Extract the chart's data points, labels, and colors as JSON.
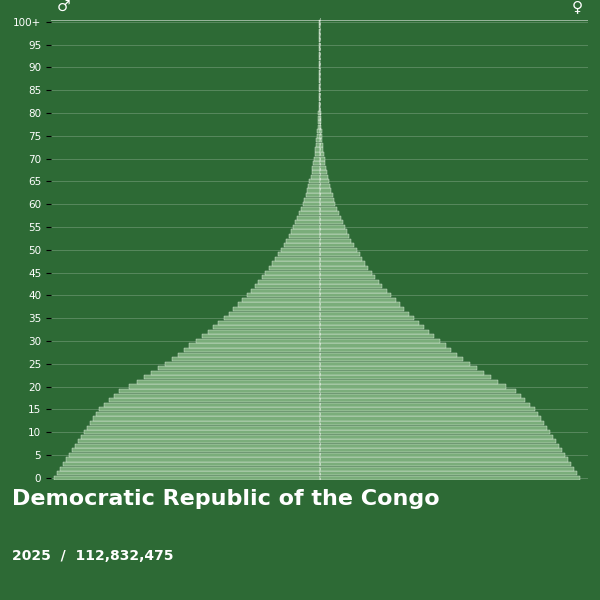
{
  "title": "Democratic Republic of the Congo",
  "subtitle": "2025  /  112,832,475",
  "bg_color": "#2d6a35",
  "bar_color": "#7aad7a",
  "bar_edge_color": "#ffffff",
  "male_symbol": "♂",
  "female_symbol": "♀",
  "male_data": [
    2650,
    2620,
    2590,
    2560,
    2530,
    2500,
    2470,
    2440,
    2410,
    2380,
    2350,
    2320,
    2290,
    2260,
    2230,
    2200,
    2150,
    2100,
    2050,
    2000,
    1900,
    1820,
    1750,
    1680,
    1610,
    1540,
    1470,
    1410,
    1350,
    1300,
    1230,
    1170,
    1110,
    1060,
    1010,
    955,
    905,
    860,
    815,
    775,
    725,
    685,
    645,
    610,
    575,
    540,
    505,
    472,
    442,
    415,
    385,
    357,
    330,
    307,
    285,
    262,
    240,
    220,
    201,
    183,
    167,
    151,
    137,
    124,
    111,
    100,
    89,
    79,
    70,
    62,
    54,
    47,
    41,
    36,
    31,
    27,
    23,
    19.5,
    16.5,
    14,
    11.8,
    9.9,
    8.2,
    6.8,
    5.6,
    4.6,
    3.7,
    3.0,
    2.4,
    1.9,
    1.5,
    1.2,
    0.95,
    0.75,
    0.58,
    0.44,
    0.33,
    0.24,
    0.17,
    0.12,
    0.08
  ],
  "female_data": [
    2600,
    2570,
    2540,
    2510,
    2480,
    2450,
    2420,
    2390,
    2360,
    2330,
    2300,
    2270,
    2240,
    2210,
    2180,
    2150,
    2100,
    2050,
    2005,
    1960,
    1860,
    1780,
    1710,
    1640,
    1570,
    1500,
    1430,
    1375,
    1315,
    1260,
    1200,
    1145,
    1090,
    1042,
    993,
    940,
    890,
    845,
    800,
    760,
    710,
    668,
    628,
    593,
    558,
    522,
    488,
    455,
    427,
    400,
    372,
    345,
    318,
    295,
    273,
    252,
    231,
    212,
    193,
    176,
    159,
    144,
    130,
    117,
    105,
    94,
    83,
    74,
    65,
    57,
    50,
    44,
    38,
    33,
    28.5,
    24.5,
    21,
    17.7,
    15,
    12.7,
    10.7,
    9.0,
    7.5,
    6.2,
    5.1,
    4.1,
    3.2,
    2.55,
    1.99,
    1.54,
    1.18,
    0.9,
    0.68,
    0.51,
    0.38,
    0.28,
    0.21,
    0.15,
    0.11,
    0.08,
    0.055
  ],
  "ytick_positions": [
    0,
    5,
    10,
    15,
    20,
    25,
    30,
    35,
    40,
    45,
    50,
    55,
    60,
    65,
    70,
    75,
    80,
    85,
    90,
    95,
    100
  ]
}
